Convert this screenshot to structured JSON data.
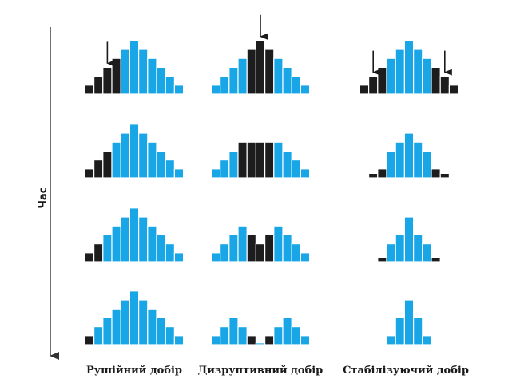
{
  "time_axis": {
    "label": "Час"
  },
  "colors": {
    "blue": "#19a6e6",
    "black": "#1d1d1d",
    "stroke": "#ffffff",
    "axis": "#333333"
  },
  "columns": [
    {
      "caption": "Рушійний добір",
      "rows": [
        {
          "bars": [
            {
              "h": 1,
              "c": "k"
            },
            {
              "h": 2,
              "c": "k"
            },
            {
              "h": 3,
              "c": "k"
            },
            {
              "h": 4,
              "c": "k"
            },
            {
              "h": 5,
              "c": "b"
            },
            {
              "h": 6,
              "c": "b"
            },
            {
              "h": 5,
              "c": "b"
            },
            {
              "h": 4,
              "c": "b"
            },
            {
              "h": 3,
              "c": "b"
            },
            {
              "h": 2,
              "c": "b"
            },
            {
              "h": 1,
              "c": "b"
            }
          ],
          "arrows": [
            2
          ]
        },
        {
          "bars": [
            {
              "h": 1,
              "c": "k"
            },
            {
              "h": 2,
              "c": "k"
            },
            {
              "h": 3,
              "c": "k"
            },
            {
              "h": 4,
              "c": "b"
            },
            {
              "h": 5,
              "c": "b"
            },
            {
              "h": 6,
              "c": "b"
            },
            {
              "h": 5,
              "c": "b"
            },
            {
              "h": 4,
              "c": "b"
            },
            {
              "h": 3,
              "c": "b"
            },
            {
              "h": 2,
              "c": "b"
            },
            {
              "h": 1,
              "c": "b"
            }
          ],
          "arrows": []
        },
        {
          "bars": [
            {
              "h": 1,
              "c": "k"
            },
            {
              "h": 2,
              "c": "k"
            },
            {
              "h": 3,
              "c": "b"
            },
            {
              "h": 4,
              "c": "b"
            },
            {
              "h": 5,
              "c": "b"
            },
            {
              "h": 6,
              "c": "b"
            },
            {
              "h": 5,
              "c": "b"
            },
            {
              "h": 4,
              "c": "b"
            },
            {
              "h": 3,
              "c": "b"
            },
            {
              "h": 2,
              "c": "b"
            },
            {
              "h": 1,
              "c": "b"
            }
          ],
          "arrows": []
        },
        {
          "bars": [
            {
              "h": 1,
              "c": "k"
            },
            {
              "h": 2,
              "c": "b"
            },
            {
              "h": 3,
              "c": "b"
            },
            {
              "h": 4,
              "c": "b"
            },
            {
              "h": 5,
              "c": "b"
            },
            {
              "h": 6,
              "c": "b"
            },
            {
              "h": 5,
              "c": "b"
            },
            {
              "h": 4,
              "c": "b"
            },
            {
              "h": 3,
              "c": "b"
            },
            {
              "h": 2,
              "c": "b"
            },
            {
              "h": 1,
              "c": "b"
            }
          ],
          "arrows": []
        }
      ]
    },
    {
      "caption": "Дизруптивний добір",
      "rows": [
        {
          "bars": [
            {
              "h": 1,
              "c": "b"
            },
            {
              "h": 2,
              "c": "b"
            },
            {
              "h": 3,
              "c": "b"
            },
            {
              "h": 4,
              "c": "b"
            },
            {
              "h": 5,
              "c": "k"
            },
            {
              "h": 6,
              "c": "k"
            },
            {
              "h": 5,
              "c": "k"
            },
            {
              "h": 4,
              "c": "b"
            },
            {
              "h": 3,
              "c": "b"
            },
            {
              "h": 2,
              "c": "b"
            },
            {
              "h": 1,
              "c": "b"
            }
          ],
          "arrows": [
            5
          ]
        },
        {
          "bars": [
            {
              "h": 1,
              "c": "b"
            },
            {
              "h": 2,
              "c": "b"
            },
            {
              "h": 3,
              "c": "b"
            },
            {
              "h": 4,
              "c": "k"
            },
            {
              "h": 4,
              "c": "k"
            },
            {
              "h": 4,
              "c": "k"
            },
            {
              "h": 4,
              "c": "k"
            },
            {
              "h": 4,
              "c": "b"
            },
            {
              "h": 3,
              "c": "b"
            },
            {
              "h": 2,
              "c": "b"
            },
            {
              "h": 1,
              "c": "b"
            }
          ],
          "arrows": []
        },
        {
          "bars": [
            {
              "h": 1,
              "c": "b"
            },
            {
              "h": 2,
              "c": "b"
            },
            {
              "h": 3,
              "c": "b"
            },
            {
              "h": 4,
              "c": "b"
            },
            {
              "h": 3,
              "c": "k"
            },
            {
              "h": 2,
              "c": "k"
            },
            {
              "h": 3,
              "c": "k"
            },
            {
              "h": 4,
              "c": "b"
            },
            {
              "h": 3,
              "c": "b"
            },
            {
              "h": 2,
              "c": "b"
            },
            {
              "h": 1,
              "c": "b"
            }
          ],
          "arrows": []
        },
        {
          "bars": [
            {
              "h": 1,
              "c": "b"
            },
            {
              "h": 2,
              "c": "b"
            },
            {
              "h": 3,
              "c": "b"
            },
            {
              "h": 2,
              "c": "b"
            },
            {
              "h": 1,
              "c": "k"
            },
            {
              "h": 0.2,
              "c": "b"
            },
            {
              "h": 1,
              "c": "k"
            },
            {
              "h": 2,
              "c": "b"
            },
            {
              "h": 3,
              "c": "b"
            },
            {
              "h": 2,
              "c": "b"
            },
            {
              "h": 1,
              "c": "b"
            }
          ],
          "arrows": []
        }
      ]
    },
    {
      "caption": "Стабілізуючий добір",
      "rows": [
        {
          "bars": [
            {
              "h": 1,
              "c": "k"
            },
            {
              "h": 2,
              "c": "k"
            },
            {
              "h": 3,
              "c": "k"
            },
            {
              "h": 4,
              "c": "b"
            },
            {
              "h": 5,
              "c": "b"
            },
            {
              "h": 6,
              "c": "b"
            },
            {
              "h": 5,
              "c": "b"
            },
            {
              "h": 4,
              "c": "b"
            },
            {
              "h": 3,
              "c": "k"
            },
            {
              "h": 2,
              "c": "k"
            },
            {
              "h": 1,
              "c": "k"
            }
          ],
          "arrows": [
            1,
            9
          ]
        },
        {
          "bars": [
            {
              "h": 0.5,
              "c": "k"
            },
            {
              "h": 1,
              "c": "k"
            },
            {
              "h": 3,
              "c": "b"
            },
            {
              "h": 4,
              "c": "b"
            },
            {
              "h": 5,
              "c": "b"
            },
            {
              "h": 4,
              "c": "b"
            },
            {
              "h": 3,
              "c": "b"
            },
            {
              "h": 1,
              "c": "k"
            },
            {
              "h": 0.5,
              "c": "k"
            }
          ],
          "arrows": []
        },
        {
          "bars": [
            {
              "h": 0.5,
              "c": "k"
            },
            {
              "h": 2,
              "c": "b"
            },
            {
              "h": 3,
              "c": "b"
            },
            {
              "h": 5,
              "c": "b"
            },
            {
              "h": 3,
              "c": "b"
            },
            {
              "h": 2,
              "c": "b"
            },
            {
              "h": 0.5,
              "c": "k"
            }
          ],
          "arrows": []
        },
        {
          "bars": [
            {
              "h": 1,
              "c": "b"
            },
            {
              "h": 3,
              "c": "b"
            },
            {
              "h": 5,
              "c": "b"
            },
            {
              "h": 3,
              "c": "b"
            },
            {
              "h": 1,
              "c": "b"
            }
          ],
          "arrows": []
        }
      ]
    }
  ]
}
